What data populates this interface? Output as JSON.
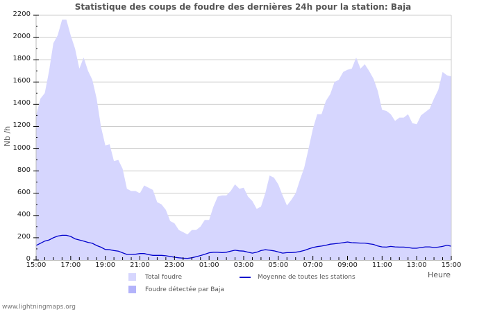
{
  "title": "Statistique des coups de foudre des dernières 24h pour la station: Baja",
  "footer": "www.lightningmaps.org",
  "colors": {
    "total_fill": "#d6d6fe",
    "detected_fill": "#b3b3fa",
    "average_line": "#0000cc",
    "grid": "#cccccc"
  },
  "legend": {
    "total": "Total foudre",
    "detected": "Foudre détectée par Baja",
    "average": "Moyenne de toutes les stations"
  },
  "chart_data": {
    "type": "area",
    "title": "Statistique des coups de foudre des dernières 24h pour la station: Baja",
    "xlabel": "Heure",
    "ylabel": "Nb /h",
    "ylim": [
      0,
      2200
    ],
    "yticks": [
      0,
      200,
      400,
      600,
      800,
      1000,
      1200,
      1400,
      1600,
      1800,
      2000,
      2200
    ],
    "xticks": [
      "15:00",
      "17:00",
      "19:00",
      "21:00",
      "23:00",
      "01:00",
      "03:00",
      "05:00",
      "07:00",
      "09:00",
      "11:00",
      "13:00",
      "15:00"
    ],
    "x_interval_minutes": 15,
    "grid": true,
    "legend_position": "bottom",
    "series": [
      {
        "name": "Total foudre",
        "kind": "area",
        "values": [
          1300,
          1450,
          1500,
          1700,
          1950,
          2020,
          2160,
          2160,
          2020,
          1900,
          1720,
          1820,
          1700,
          1620,
          1450,
          1200,
          1030,
          1040,
          890,
          900,
          820,
          640,
          620,
          620,
          600,
          670,
          650,
          630,
          520,
          500,
          450,
          350,
          330,
          270,
          250,
          230,
          270,
          270,
          300,
          360,
          360,
          480,
          570,
          580,
          580,
          620,
          680,
          640,
          650,
          570,
          530,
          460,
          480,
          600,
          760,
          740,
          680,
          580,
          490,
          540,
          600,
          720,
          830,
          1000,
          1180,
          1310,
          1310,
          1430,
          1490,
          1600,
          1620,
          1690,
          1710,
          1720,
          1820,
          1720,
          1760,
          1700,
          1630,
          1520,
          1350,
          1340,
          1310,
          1250,
          1280,
          1280,
          1310,
          1230,
          1220,
          1300,
          1330,
          1360,
          1450,
          1530,
          1690,
          1660,
          1650
        ]
      },
      {
        "name": "Foudre détectée par Baja",
        "kind": "area",
        "values": []
      },
      {
        "name": "Moyenne de toutes les stations",
        "kind": "line",
        "values": [
          130,
          150,
          170,
          180,
          200,
          215,
          222,
          222,
          212,
          190,
          180,
          170,
          158,
          150,
          130,
          115,
          95,
          92,
          85,
          80,
          65,
          50,
          50,
          52,
          58,
          58,
          48,
          42,
          42,
          42,
          38,
          32,
          25,
          20,
          16,
          15,
          20,
          30,
          40,
          52,
          65,
          70,
          70,
          66,
          70,
          80,
          88,
          82,
          80,
          70,
          62,
          70,
          85,
          92,
          88,
          82,
          72,
          62,
          66,
          66,
          70,
          76,
          86,
          100,
          112,
          120,
          125,
          132,
          142,
          146,
          150,
          156,
          162,
          156,
          154,
          152,
          152,
          146,
          140,
          126,
          118,
          116,
          122,
          118,
          116,
          116,
          112,
          106,
          106,
          112,
          118,
          118,
          112,
          116,
          122,
          132,
          124
        ]
      }
    ]
  }
}
